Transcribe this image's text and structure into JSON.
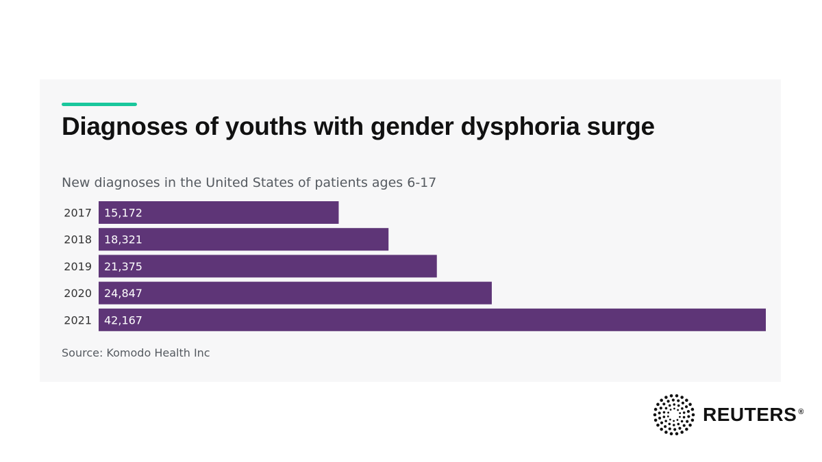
{
  "colors": {
    "accent": "#19c79c",
    "bar": "#5e3577",
    "background": "#f7f7f8"
  },
  "brand": {
    "name": "REUTERS",
    "registered_mark": "®",
    "icon": "reuters-dot-ring-logo"
  },
  "chart_data": {
    "type": "bar",
    "orientation": "horizontal",
    "title": "Diagnoses of youths with gender dysphoria surge",
    "subtitle": "New diagnoses in the United States of patients ages 6-17",
    "source": "Source: Komodo Health Inc",
    "categories": [
      "2017",
      "2018",
      "2019",
      "2020",
      "2021"
    ],
    "values": [
      15172,
      18321,
      21375,
      24847,
      42167
    ],
    "value_labels": [
      "15,172",
      "18,321",
      "21,375",
      "24,847",
      "42,167"
    ],
    "xlim": [
      0,
      42167
    ],
    "grid": false,
    "legend": "none"
  }
}
